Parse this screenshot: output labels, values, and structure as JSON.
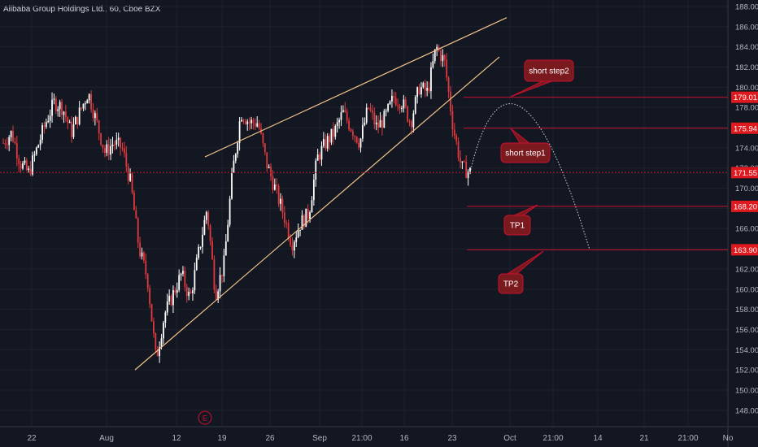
{
  "header": {
    "symbol_title": "Alibaba Group Holdings Ltd., 60, Cboe BZX"
  },
  "colors": {
    "background": "#131722",
    "grid": "#1e222d",
    "axis_text": "#b2b5be",
    "candle_up": "#ffffff",
    "candle_down": "#e03a3e",
    "wedge_line": "#f2c28a",
    "level_line": "#c8102e",
    "callout_fill": "#7a1a1f",
    "callout_border": "#c8102e",
    "price_label_bg": "#e0191f"
  },
  "chart_data": {
    "type": "candlestick",
    "y_range": [
      147,
      189
    ],
    "y_ticks": [
      "188.00",
      "186.00",
      "184.00",
      "182.00",
      "180.00",
      "178.00",
      "176.00",
      "174.00",
      "172.00",
      "170.00",
      "168.00",
      "166.00",
      "164.00",
      "162.00",
      "160.00",
      "158.00",
      "156.00",
      "154.00",
      "152.00",
      "150.00",
      "148.00"
    ],
    "x_ticks": [
      "22",
      "Aug",
      "12",
      "19",
      "26",
      "Sep",
      "21:00",
      "16",
      "23",
      "Oct",
      "21:00",
      "14",
      "21",
      "21:00",
      "No"
    ],
    "series": [
      {
        "name": "price",
        "values": [
          174.5,
          175.5,
          172.5,
          171.5,
          174.0,
          176.5,
          178.5,
          178.0,
          175.5,
          177.5,
          179.5,
          176.5,
          173.5,
          174.5,
          174.0,
          170.5,
          164.0,
          161.0,
          153.0,
          157.5,
          159.5,
          161.5,
          159.0,
          163.5,
          168.0,
          159.5,
          162.5,
          171.5,
          177.5,
          176.5,
          176.5,
          172.5,
          170.0,
          167.5,
          164.5,
          166.5,
          167.5,
          173.0,
          174.5,
          175.5,
          177.5,
          176.0,
          174.5,
          178.0,
          176.0,
          177.0,
          179.0,
          178.5,
          176.5,
          180.0,
          179.5,
          184.0,
          182.5,
          176.0,
          172.0,
          171.6
        ]
      }
    ],
    "current_price": "171.55",
    "levels": [
      {
        "name": "short step2",
        "price": 179.01,
        "label": "179.01"
      },
      {
        "name": "short step1",
        "price": 175.94,
        "label": "175.94"
      },
      {
        "name": "TP1",
        "price": 168.2,
        "label": "168.20"
      },
      {
        "name": "TP2",
        "price": 163.9,
        "label": "163.90"
      }
    ],
    "wedge": {
      "upper": [
        [
          "Aug 18",
          173.1
        ],
        [
          "Oct 1",
          186.9
        ]
      ],
      "lower": [
        [
          "Aug 5",
          152.0
        ],
        [
          "Sep 30",
          183.0
        ]
      ]
    },
    "projection_arc": {
      "start_price": 171.55,
      "peak_price": 179.01,
      "end_price": 163.9
    },
    "event_marker": "E",
    "callouts": [
      "short step2",
      "short step1",
      "TP1",
      "TP2"
    ]
  }
}
